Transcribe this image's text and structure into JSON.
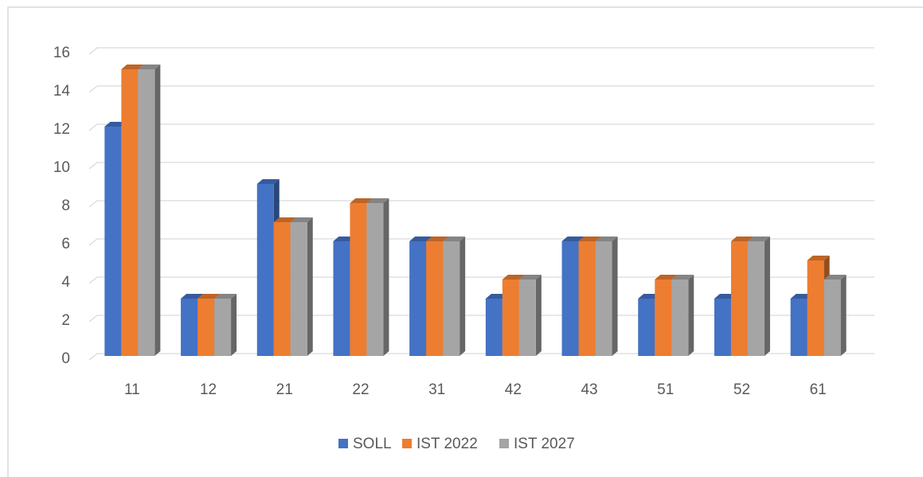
{
  "chart_data": {
    "type": "bar3d",
    "categories": [
      "11",
      "12",
      "21",
      "22",
      "31",
      "42",
      "43",
      "51",
      "52",
      "61"
    ],
    "series": [
      {
        "name": "SOLL",
        "color": "#4472c4",
        "values": [
          12,
          3,
          9,
          6,
          6,
          3,
          6,
          3,
          3,
          3
        ]
      },
      {
        "name": "IST 2022",
        "color": "#ed7d31",
        "values": [
          15,
          3,
          7,
          8,
          6,
          4,
          6,
          4,
          6,
          5
        ]
      },
      {
        "name": "IST 2027",
        "color": "#a5a5a5",
        "values": [
          15,
          3,
          7,
          8,
          6,
          4,
          6,
          4,
          6,
          4
        ]
      }
    ],
    "ylim": [
      0,
      16
    ],
    "yticks": [
      0,
      2,
      4,
      6,
      8,
      10,
      12,
      14,
      16
    ],
    "grid": true,
    "legend": "bottom"
  }
}
